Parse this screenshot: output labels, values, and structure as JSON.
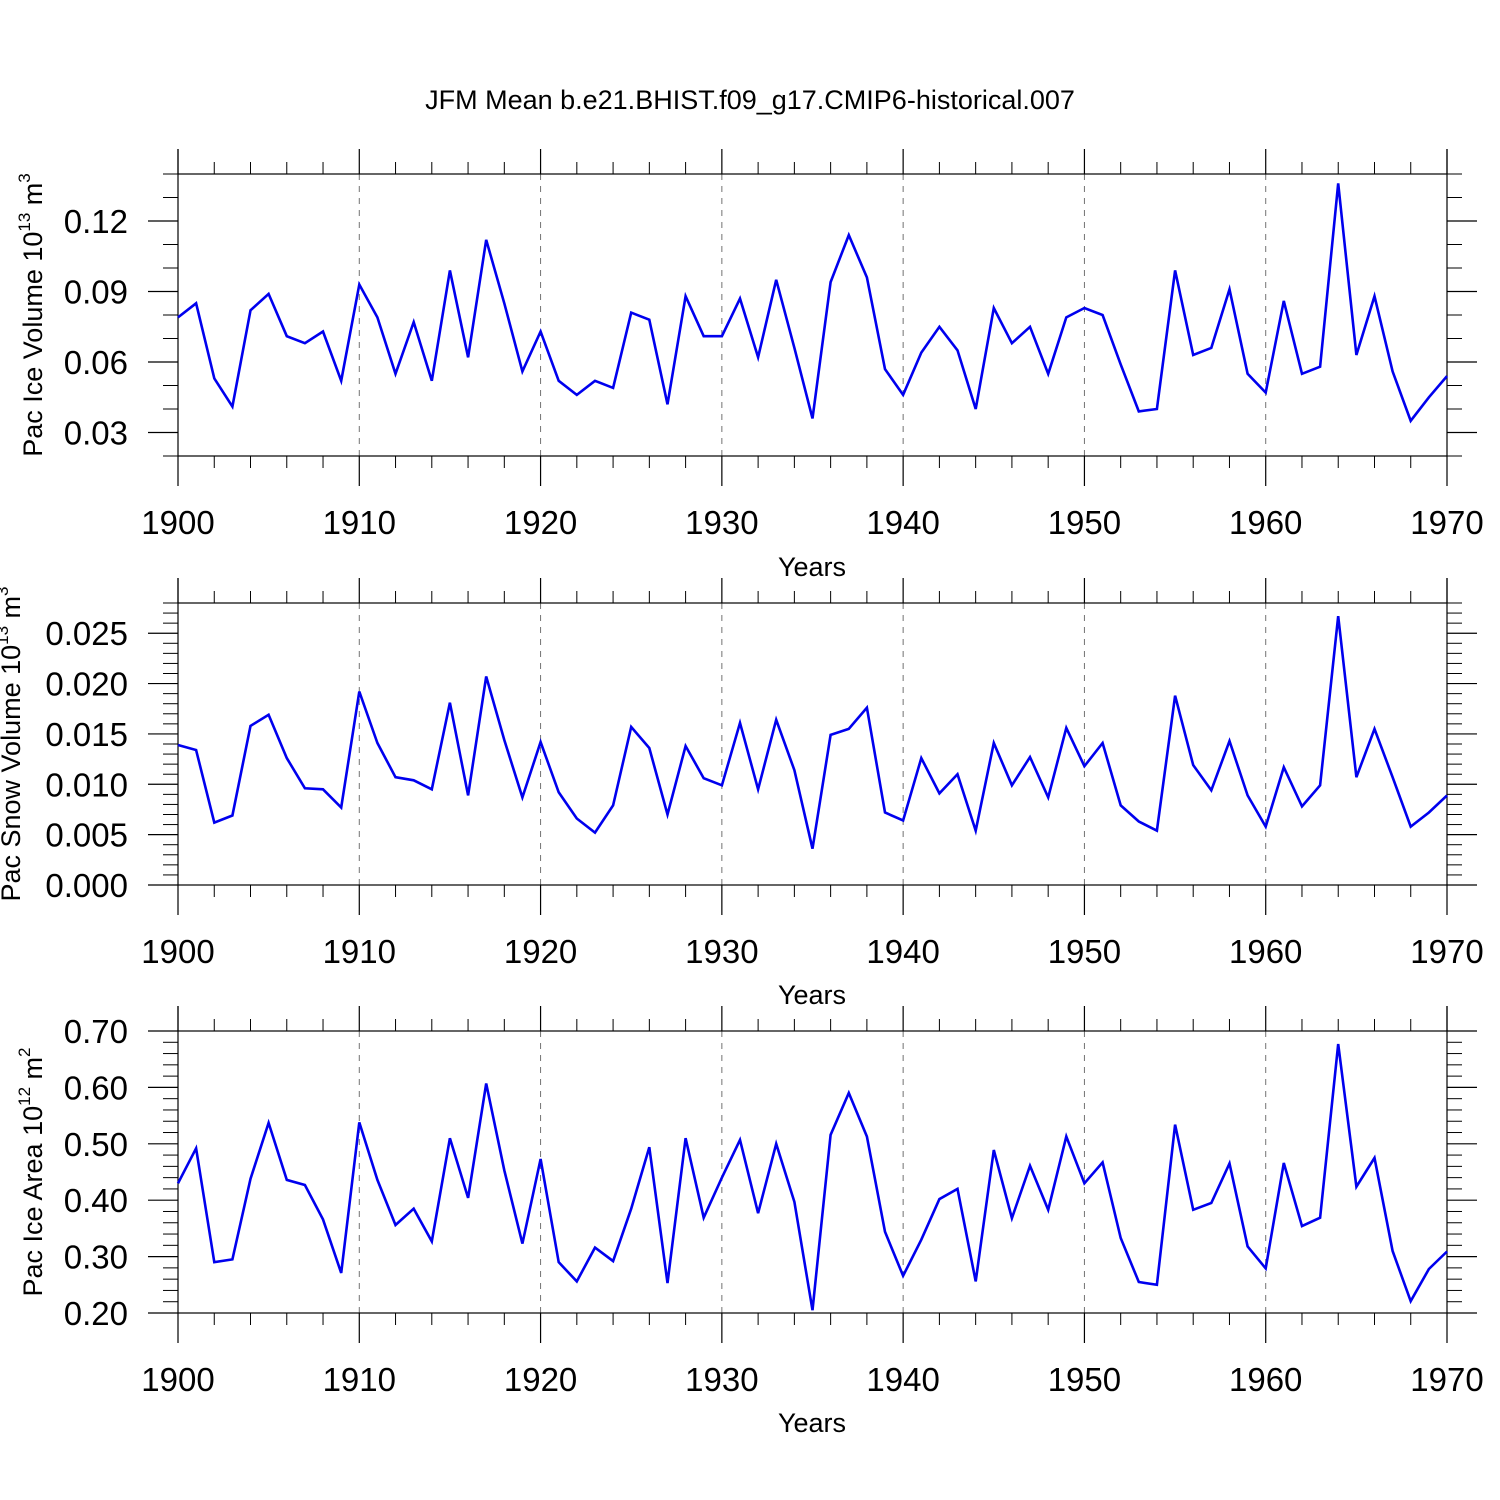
{
  "figure_title": "JFM Mean b.e21.BHIST.f09_g17.CMIP6-historical.007",
  "colors": {
    "line": "#0000ee",
    "axis": "#000000",
    "background": "#ffffff"
  },
  "chart_data": [
    {
      "type": "line",
      "title": "JFM Mean b.e21.BHIST.f09_g17.CMIP6-historical.007",
      "xlabel": "Years",
      "ylabel_text": "Pac Ice Volume 10",
      "ylabel_exp": "13",
      "ylabel_unit": "m",
      "ylabel_unit_exp": "3",
      "xlim": [
        1900,
        1970
      ],
      "ylim": [
        0.02,
        0.14
      ],
      "xticks": [
        1900,
        1910,
        1920,
        1930,
        1940,
        1950,
        1960,
        1970
      ],
      "xtick_labels": [
        "1900",
        "1910",
        "1920",
        "1930",
        "1940",
        "1950",
        "1960",
        "1970"
      ],
      "yticks": [
        0.03,
        0.06,
        0.09,
        0.12
      ],
      "ytick_labels": [
        "0.03",
        "0.06",
        "0.09",
        "0.12"
      ],
      "yminor_step": 0.01,
      "grid_x": true,
      "x_start": 1900,
      "series": [
        {
          "name": "Pac Ice Volume",
          "values": [
            0.079,
            0.085,
            0.053,
            0.041,
            0.082,
            0.089,
            0.071,
            0.068,
            0.073,
            0.052,
            0.093,
            0.079,
            0.055,
            0.077,
            0.052,
            0.099,
            0.062,
            0.112,
            0.085,
            0.056,
            0.073,
            0.052,
            0.046,
            0.052,
            0.049,
            0.081,
            0.078,
            0.042,
            0.088,
            0.071,
            0.071,
            0.087,
            0.062,
            0.095,
            0.066,
            0.036,
            0.094,
            0.114,
            0.096,
            0.057,
            0.046,
            0.064,
            0.075,
            0.065,
            0.04,
            0.083,
            0.068,
            0.075,
            0.055,
            0.079,
            0.083,
            0.08,
            0.059,
            0.039,
            0.04,
            0.099,
            0.063,
            0.066,
            0.091,
            0.055,
            0.047,
            0.086,
            0.055,
            0.058,
            0.136,
            0.063,
            0.088,
            0.056,
            0.035,
            0.045,
            0.054
          ]
        }
      ]
    },
    {
      "type": "line",
      "xlabel": "Years",
      "ylabel_text": "Pac Snow Volume 10",
      "ylabel_exp": "13",
      "ylabel_unit": "m",
      "ylabel_unit_exp": "3",
      "xlim": [
        1900,
        1970
      ],
      "ylim": [
        0.0,
        0.028
      ],
      "xticks": [
        1900,
        1910,
        1920,
        1930,
        1940,
        1950,
        1960,
        1970
      ],
      "xtick_labels": [
        "1900",
        "1910",
        "1920",
        "1930",
        "1940",
        "1950",
        "1960",
        "1970"
      ],
      "yticks": [
        0.0,
        0.005,
        0.01,
        0.015,
        0.02,
        0.025
      ],
      "ytick_labels": [
        "0.000",
        "0.005",
        "0.010",
        "0.015",
        "0.020",
        "0.025"
      ],
      "yminor_step": 0.001,
      "grid_x": true,
      "x_start": 1900,
      "series": [
        {
          "name": "Pac Snow Volume",
          "values": [
            0.0139,
            0.0134,
            0.0062,
            0.0069,
            0.0158,
            0.0169,
            0.0126,
            0.0096,
            0.0095,
            0.0077,
            0.0192,
            0.0141,
            0.0107,
            0.0104,
            0.0095,
            0.0181,
            0.0089,
            0.0207,
            0.0144,
            0.0087,
            0.0142,
            0.0092,
            0.0066,
            0.0052,
            0.0079,
            0.0157,
            0.0136,
            0.007,
            0.0138,
            0.0106,
            0.0099,
            0.0161,
            0.0095,
            0.0164,
            0.0114,
            0.0036,
            0.0149,
            0.0155,
            0.0176,
            0.0072,
            0.0064,
            0.0126,
            0.0091,
            0.011,
            0.0054,
            0.0141,
            0.0099,
            0.0127,
            0.0087,
            0.0156,
            0.0118,
            0.0141,
            0.0079,
            0.0063,
            0.0054,
            0.0188,
            0.0119,
            0.0094,
            0.0143,
            0.0089,
            0.0058,
            0.0117,
            0.0078,
            0.0099,
            0.0267,
            0.0107,
            0.0155,
            0.0107,
            0.0058,
            0.0072,
            0.0089
          ]
        }
      ]
    },
    {
      "type": "line",
      "xlabel": "Years",
      "ylabel_text": "Pac Ice Area 10",
      "ylabel_exp": "12",
      "ylabel_unit": "m",
      "ylabel_unit_exp": "2",
      "xlim": [
        1900,
        1970
      ],
      "ylim": [
        0.2,
        0.7
      ],
      "xticks": [
        1900,
        1910,
        1920,
        1930,
        1940,
        1950,
        1960,
        1970
      ],
      "xtick_labels": [
        "1900",
        "1910",
        "1920",
        "1930",
        "1940",
        "1950",
        "1960",
        "1970"
      ],
      "yticks": [
        0.2,
        0.3,
        0.4,
        0.5,
        0.6,
        0.7
      ],
      "ytick_labels": [
        "0.20",
        "0.30",
        "0.40",
        "0.50",
        "0.60",
        "0.70"
      ],
      "yminor_step": 0.02,
      "grid_x": true,
      "x_start": 1900,
      "series": [
        {
          "name": "Pac Ice Area",
          "values": [
            0.43,
            0.492,
            0.29,
            0.295,
            0.438,
            0.537,
            0.436,
            0.427,
            0.366,
            0.271,
            0.538,
            0.436,
            0.356,
            0.385,
            0.327,
            0.51,
            0.404,
            0.607,
            0.453,
            0.323,
            0.473,
            0.29,
            0.256,
            0.316,
            0.292,
            0.385,
            0.494,
            0.253,
            0.51,
            0.369,
            0.44,
            0.507,
            0.377,
            0.5,
            0.397,
            0.205,
            0.516,
            0.59,
            0.513,
            0.344,
            0.266,
            0.33,
            0.402,
            0.42,
            0.256,
            0.489,
            0.368,
            0.461,
            0.383,
            0.513,
            0.43,
            0.467,
            0.333,
            0.255,
            0.25,
            0.534,
            0.383,
            0.395,
            0.465,
            0.318,
            0.279,
            0.466,
            0.354,
            0.369,
            0.677,
            0.424,
            0.475,
            0.31,
            0.221,
            0.278,
            0.309
          ]
        }
      ]
    }
  ]
}
